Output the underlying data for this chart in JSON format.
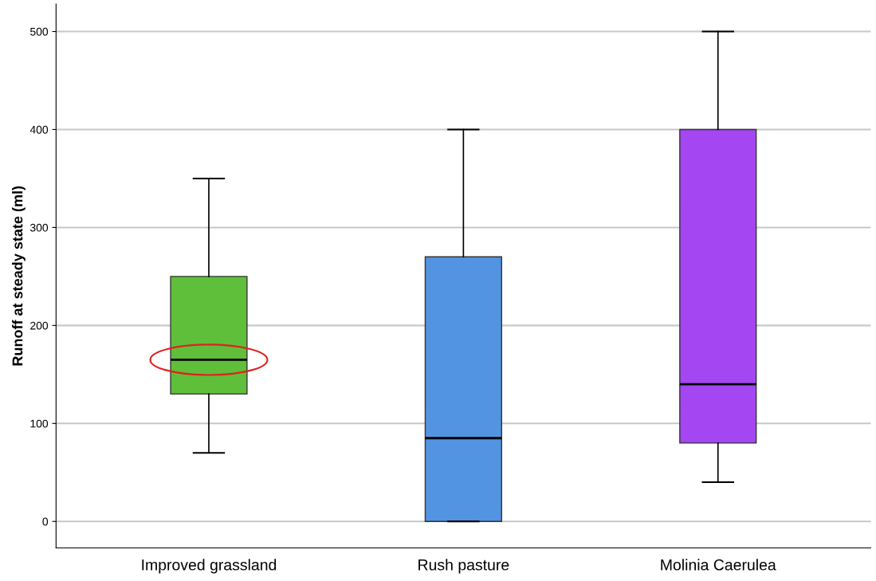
{
  "chart_data": {
    "type": "box",
    "ylabel": "Runoff at steady state (ml)",
    "categories": [
      "Improved grassland",
      "Rush pasture",
      "Molinia Caerulea"
    ],
    "boxes": [
      {
        "low": 70,
        "q1": 130,
        "median": 165,
        "q3": 250,
        "high": 350
      },
      {
        "low": 0,
        "q1": 0,
        "median": 85,
        "q3": 270,
        "high": 400
      },
      {
        "low": 40,
        "q1": 80,
        "median": 140,
        "q3": 400,
        "high": 500
      }
    ],
    "colors": [
      "#5fbf3a",
      "#5294e2",
      "#a446f2"
    ],
    "ylim": [
      -27,
      528
    ],
    "yticks": [
      0,
      100,
      200,
      300,
      400,
      500
    ],
    "grid": "y"
  }
}
